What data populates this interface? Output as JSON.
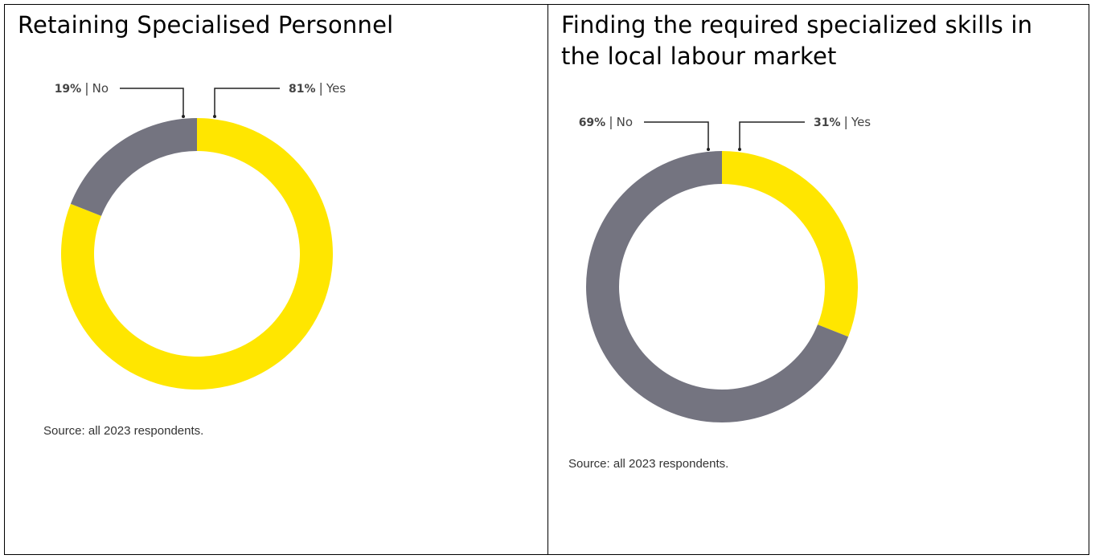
{
  "colors": {
    "yes": "#FFE600",
    "no": "#747480",
    "leader": "#222222"
  },
  "charts": [
    {
      "title": "Retaining Specialised Personnel",
      "source": "Source: all 2023 respondents."
    },
    {
      "title": "Finding the required specialized skills in the local labour market",
      "source": "Source: all 2023 respondents."
    }
  ],
  "chart_data": [
    {
      "type": "pie",
      "title": "Retaining Specialised Personnel",
      "donut": true,
      "slices": [
        {
          "label": "Yes",
          "value": 81,
          "value_label": "81%",
          "color": "#FFE600"
        },
        {
          "label": "No",
          "value": 19,
          "value_label": "19%",
          "color": "#747480"
        }
      ],
      "start": "top",
      "direction": "clockwise"
    },
    {
      "type": "pie",
      "title": "Finding the required specialized skills in the local labour market",
      "donut": true,
      "slices": [
        {
          "label": "Yes",
          "value": 31,
          "value_label": "31%",
          "color": "#FFE600"
        },
        {
          "label": "No",
          "value": 69,
          "value_label": "69%",
          "color": "#747480"
        }
      ],
      "start": "top",
      "direction": "clockwise"
    }
  ]
}
